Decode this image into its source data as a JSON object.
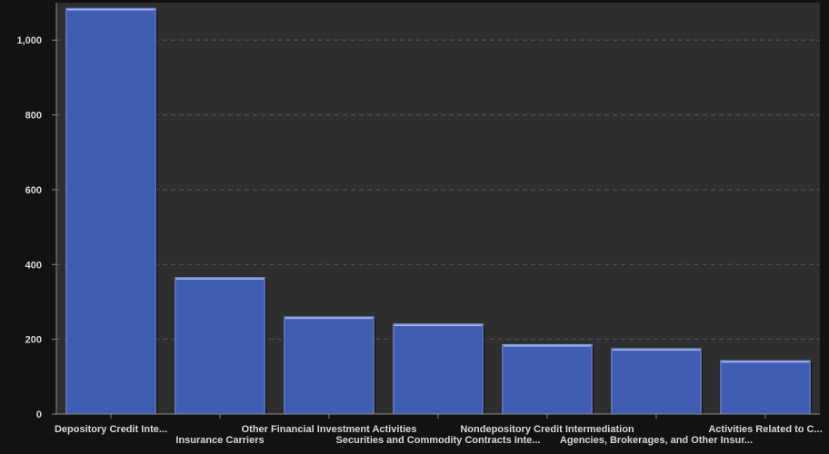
{
  "chart_data": {
    "type": "bar",
    "categories": [
      "Depository Credit Inte...",
      "Insurance Carriers",
      "Other Financial Investment Activities",
      "Securities and Commodity Contracts Inte...",
      "Nondepository Credit Intermediation",
      "Agencies, Brokerages, and Other Insur...",
      "Activities Related to C..."
    ],
    "values": [
      1085,
      365,
      260,
      241,
      186,
      175,
      143
    ],
    "y_ticks": [
      "0",
      "200",
      "400",
      "600",
      "800",
      "1,000"
    ],
    "ylim": [
      0,
      1100
    ],
    "grid": true,
    "colors": {
      "page_bg": "#121212",
      "plot_bg": "#2e2e2e",
      "bar_fill": "#3f5cb3",
      "bar_edge": "#7d93dc",
      "bar_shadow": "#0c0c14",
      "grid": "#555555",
      "axis": "#8a8a8a",
      "text": "#d8d8d8"
    }
  }
}
